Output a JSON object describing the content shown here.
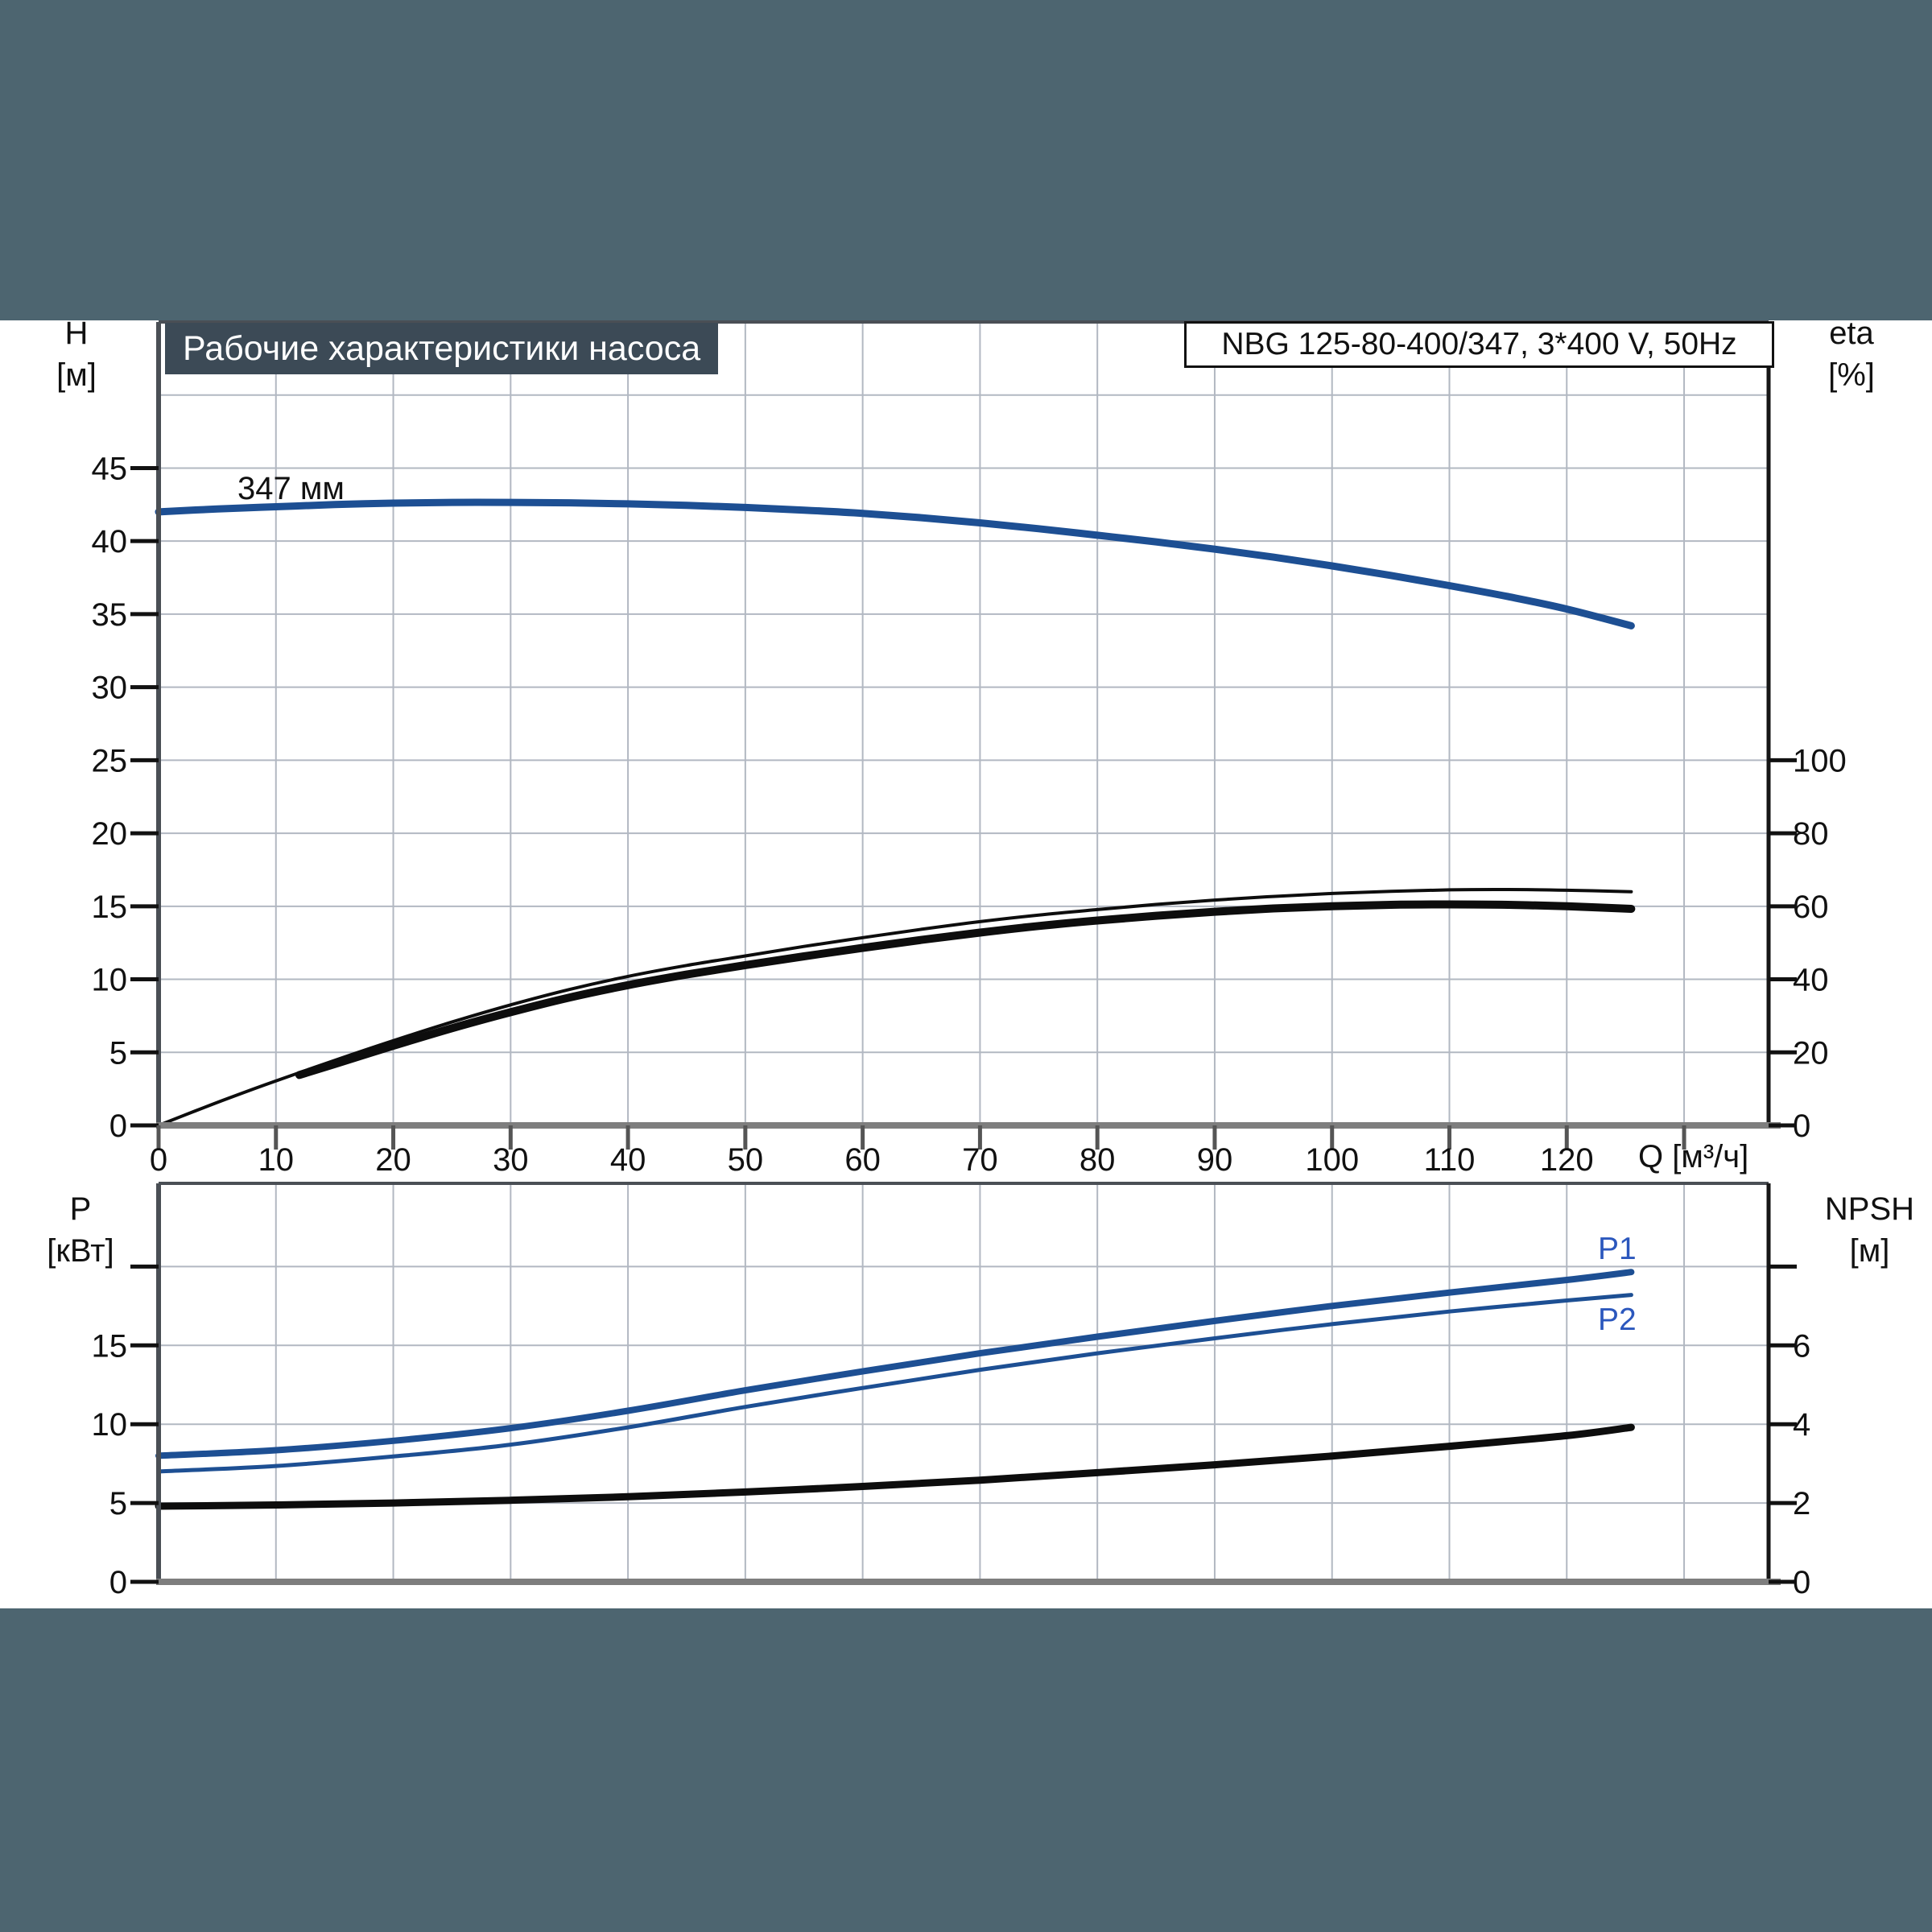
{
  "page": {
    "background_band_color": "#4d6570",
    "model_box": "NBG 125-80-400/347, 3*400 V, 50Hz",
    "colors": {
      "curve_blue": "#1d4f93",
      "label_blue": "#2b57bd",
      "curve_black": "#0d0d0d",
      "grid": "#b2b8c2",
      "frame": "#4a4f55",
      "axis_bottom": "#7e7e7e",
      "axis_right": "#161616",
      "title_bg": "#3c4a56",
      "tick_text": "#111111"
    }
  },
  "chart_data": [
    {
      "type": "line",
      "title": "Рабочие характеристики насоса",
      "x": {
        "label": "Q [м³/ч]",
        "min": 0,
        "max": 137.2,
        "ticks": [
          0,
          10,
          20,
          30,
          40,
          50,
          60,
          70,
          80,
          90,
          100,
          110,
          120
        ],
        "ticks_unlabeled": [
          130
        ],
        "grid": [
          10,
          20,
          30,
          40,
          50,
          60,
          70,
          80,
          90,
          100,
          110,
          120,
          130
        ]
      },
      "y_left": {
        "label": "H",
        "unit": "[м]",
        "min": 0,
        "max": 55,
        "ticks": [
          0,
          5,
          10,
          15,
          20,
          25,
          30,
          35,
          40,
          45
        ],
        "ticks_unlabeled": [],
        "grid": [
          5,
          10,
          15,
          20,
          25,
          30,
          35,
          40,
          45,
          50
        ]
      },
      "y_right": {
        "label": "eta",
        "unit": "[%]",
        "min": 0,
        "ticks": [
          0,
          20,
          40,
          60,
          80,
          100
        ],
        "ticks_unlabeled": [],
        "left_units_per_right_unit": 0.25
      },
      "series": [
        {
          "id": "head-347",
          "label": "347 мм",
          "axis": "left",
          "color_key": "curve_blue",
          "width": 9,
          "points": [
            [
              0,
              42.0
            ],
            [
              5,
              42.2
            ],
            [
              10,
              42.35
            ],
            [
              15,
              42.5
            ],
            [
              20,
              42.6
            ],
            [
              25,
              42.65
            ],
            [
              30,
              42.65
            ],
            [
              35,
              42.62
            ],
            [
              40,
              42.55
            ],
            [
              45,
              42.45
            ],
            [
              50,
              42.3
            ],
            [
              55,
              42.12
            ],
            [
              60,
              41.9
            ],
            [
              65,
              41.6
            ],
            [
              70,
              41.25
            ],
            [
              75,
              40.85
            ],
            [
              80,
              40.4
            ],
            [
              85,
              39.95
            ],
            [
              90,
              39.45
            ],
            [
              95,
              38.9
            ],
            [
              100,
              38.3
            ],
            [
              105,
              37.65
            ],
            [
              110,
              36.95
            ],
            [
              115,
              36.2
            ],
            [
              120,
              35.35
            ],
            [
              125.5,
              34.2
            ]
          ]
        },
        {
          "id": "eta-thin",
          "label": "",
          "axis": "right",
          "color_key": "curve_black",
          "width": 4,
          "points": [
            [
              0,
              0
            ],
            [
              3,
              3.8
            ],
            [
              6,
              7.5
            ],
            [
              10,
              12.2
            ],
            [
              15,
              17.8
            ],
            [
              20,
              23.2
            ],
            [
              25,
              28.3
            ],
            [
              30,
              33.0
            ],
            [
              35,
              37.2
            ],
            [
              40,
              40.8
            ],
            [
              45,
              43.8
            ],
            [
              50,
              46.4
            ],
            [
              55,
              49.0
            ],
            [
              60,
              51.4
            ],
            [
              65,
              53.7
            ],
            [
              70,
              55.8
            ],
            [
              75,
              57.6
            ],
            [
              80,
              59.1
            ],
            [
              85,
              60.5
            ],
            [
              90,
              61.7
            ],
            [
              95,
              62.7
            ],
            [
              100,
              63.5
            ],
            [
              105,
              64.1
            ],
            [
              110,
              64.5
            ],
            [
              115,
              64.6
            ],
            [
              120,
              64.4
            ],
            [
              125.5,
              64.0
            ]
          ]
        },
        {
          "id": "eta-thick",
          "label": "",
          "axis": "right",
          "color_key": "curve_black",
          "width": 10,
          "points": [
            [
              12,
              13.8
            ],
            [
              15,
              16.8
            ],
            [
              20,
              21.8
            ],
            [
              25,
              26.6
            ],
            [
              30,
              31.0
            ],
            [
              35,
              35.0
            ],
            [
              40,
              38.4
            ],
            [
              45,
              41.3
            ],
            [
              50,
              43.9
            ],
            [
              55,
              46.3
            ],
            [
              60,
              48.6
            ],
            [
              65,
              50.8
            ],
            [
              70,
              52.8
            ],
            [
              75,
              54.6
            ],
            [
              80,
              56.1
            ],
            [
              85,
              57.4
            ],
            [
              90,
              58.5
            ],
            [
              95,
              59.4
            ],
            [
              100,
              60.0
            ],
            [
              105,
              60.4
            ],
            [
              110,
              60.5
            ],
            [
              115,
              60.4
            ],
            [
              120,
              60.0
            ],
            [
              125.5,
              59.3
            ]
          ]
        }
      ]
    },
    {
      "type": "line",
      "title": "",
      "x": {
        "label": "",
        "min": 0,
        "max": 137.2,
        "ticks": [],
        "ticks_unlabeled": [],
        "grid": [
          10,
          20,
          30,
          40,
          50,
          60,
          70,
          80,
          90,
          100,
          110,
          120,
          130
        ]
      },
      "y_left": {
        "label": "P",
        "unit": "[кВт]",
        "min": 0,
        "max": 25.28,
        "ticks": [
          0,
          5,
          10,
          15
        ],
        "ticks_unlabeled": [
          20
        ],
        "grid": [
          5,
          10,
          15,
          20
        ]
      },
      "y_right": {
        "label": "NPSH",
        "unit": "[м]",
        "min": 0,
        "ticks": [
          0,
          2,
          4,
          6
        ],
        "ticks_unlabeled": [
          8
        ],
        "left_units_per_right_unit": 2.5
      },
      "series": [
        {
          "id": "p1",
          "label": "P1",
          "axis": "left",
          "color_key": "curve_blue",
          "width": 8,
          "points": [
            [
              0,
              8.0
            ],
            [
              10,
              8.35
            ],
            [
              20,
              8.95
            ],
            [
              30,
              9.75
            ],
            [
              40,
              10.85
            ],
            [
              50,
              12.15
            ],
            [
              60,
              13.35
            ],
            [
              70,
              14.5
            ],
            [
              80,
              15.55
            ],
            [
              90,
              16.55
            ],
            [
              100,
              17.5
            ],
            [
              110,
              18.35
            ],
            [
              120,
              19.15
            ],
            [
              125.5,
              19.65
            ]
          ]
        },
        {
          "id": "p2",
          "label": "P2",
          "axis": "left",
          "color_key": "curve_blue",
          "width": 5,
          "points": [
            [
              0,
              7.0
            ],
            [
              10,
              7.35
            ],
            [
              20,
              7.95
            ],
            [
              30,
              8.7
            ],
            [
              40,
              9.8
            ],
            [
              50,
              11.1
            ],
            [
              60,
              12.3
            ],
            [
              70,
              13.45
            ],
            [
              80,
              14.5
            ],
            [
              90,
              15.45
            ],
            [
              100,
              16.35
            ],
            [
              110,
              17.15
            ],
            [
              120,
              17.85
            ],
            [
              125.5,
              18.2
            ]
          ]
        },
        {
          "id": "npsh",
          "label": "",
          "axis": "right",
          "color_key": "curve_black",
          "width": 9,
          "points": [
            [
              0,
              1.92
            ],
            [
              10,
              1.95
            ],
            [
              20,
              2.0
            ],
            [
              30,
              2.07
            ],
            [
              40,
              2.16
            ],
            [
              50,
              2.28
            ],
            [
              60,
              2.42
            ],
            [
              70,
              2.58
            ],
            [
              80,
              2.77
            ],
            [
              90,
              2.97
            ],
            [
              100,
              3.19
            ],
            [
              110,
              3.44
            ],
            [
              120,
              3.71
            ],
            [
              125.5,
              3.92
            ]
          ]
        }
      ]
    }
  ]
}
